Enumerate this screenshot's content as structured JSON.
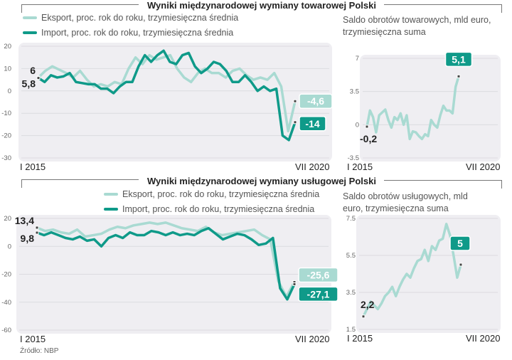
{
  "colors": {
    "export": "#a9dad2",
    "import": "#0f9a89",
    "balance": "#a9dad2",
    "plot_bg": "#efeef2"
  },
  "source": "Źródło: NBP",
  "chart_data": [
    {
      "type": "line",
      "title": "Wyniki międzynarodowej wymiany towarowej Polski",
      "x_labels": [
        "I 2015",
        "VII 2020"
      ],
      "ylim": [
        -30,
        20
      ],
      "yticks": [
        "20",
        "10",
        "0",
        "-10",
        "-20",
        "-30"
      ],
      "grid": true,
      "series": [
        {
          "name": "Eksport, proc. rok do roku, trzymiesięczna średnia",
          "color": "export",
          "start_label": "6",
          "end_label": "-4,6",
          "values": [
            6,
            9,
            11,
            9.5,
            8,
            6,
            9,
            5,
            2,
            3,
            2,
            4,
            3,
            10,
            15,
            12,
            16,
            14,
            15,
            16,
            10,
            6,
            4,
            8,
            10,
            8,
            8,
            6,
            9,
            10,
            7,
            5,
            6,
            5,
            8,
            2,
            -18,
            -4.6
          ]
        },
        {
          "name": "Import, proc. rok do roku, trzymiesięczna średnia",
          "color": "import",
          "start_label": "5,8",
          "end_label": "-14",
          "values": [
            5.8,
            4,
            7,
            6,
            6.5,
            8,
            4,
            3.5,
            3,
            3,
            1,
            1,
            -1,
            2,
            4,
            4,
            11,
            16,
            13,
            16,
            18,
            13,
            12,
            16,
            17,
            11,
            8,
            10,
            13,
            12,
            9,
            4,
            4,
            7,
            4,
            0,
            2,
            0,
            1,
            -20,
            -22,
            -14
          ]
        }
      ]
    },
    {
      "type": "line",
      "title": "Saldo obrotów towarowych, mld euro, trzymiesięczna suma",
      "x_labels": [
        "I 2015",
        "VII 2020"
      ],
      "ylim": [
        -3.5,
        7
      ],
      "yticks": [
        "7",
        "3.5",
        "0",
        "-3.5"
      ],
      "grid": true,
      "series": [
        {
          "color": "balance",
          "start_label": "-0,2",
          "end_label": "5,1",
          "values": [
            -0.2,
            1.5,
            0.8,
            -0.8,
            1,
            1.3,
            1.6,
            0.5,
            -0.3,
            0.8,
            0.5,
            1.2,
            0,
            1,
            -1.5,
            -0.7,
            -0.8,
            -1.2,
            -1.5,
            -1,
            -1.2,
            0.5,
            0,
            -0.3,
            1,
            2,
            1.5,
            1.5,
            1.2,
            4,
            5.1
          ]
        }
      ]
    },
    {
      "type": "line",
      "title": "Wyniki międzynarodowej wymiany usługowej Polski",
      "x_labels": [
        "I 2015",
        "VII 2020"
      ],
      "ylim": [
        -60,
        20
      ],
      "yticks": [
        "20",
        "0",
        "-20",
        "-40",
        "-60"
      ],
      "grid": true,
      "series": [
        {
          "name": "Eksport, proc. rok do roku, trzymiesięczna średnia",
          "color": "export",
          "start_label": "13,4",
          "end_label": "-25,6",
          "values": [
            13.4,
            11,
            12,
            10,
            9,
            12,
            7,
            8,
            9,
            12,
            14,
            13,
            15,
            16,
            17,
            16,
            17,
            15,
            13,
            12,
            11,
            14,
            10,
            8,
            9,
            10,
            11,
            12,
            8,
            5,
            -25,
            -36,
            -25.6
          ]
        },
        {
          "name": "Import, proc. rok do roku, trzymiesięczna średnia",
          "color": "import",
          "start_label": "9,8",
          "end_label": "-27,1",
          "values": [
            9.8,
            8,
            10,
            8,
            6,
            5,
            7,
            4,
            5,
            0,
            6,
            8,
            6,
            10,
            8,
            8,
            11,
            10,
            8,
            10,
            8,
            9,
            8,
            11,
            13,
            9,
            5,
            7,
            9,
            8,
            5,
            1,
            2,
            6,
            -30,
            -38,
            -27.1
          ]
        }
      ]
    },
    {
      "type": "line",
      "title": "Saldo obrotów usługowych, mld euro, trzymiesięczna suma",
      "x_labels": [
        "I 2015",
        "VII 2020"
      ],
      "ylim": [
        1.5,
        7.5
      ],
      "yticks": [
        "7.5",
        "5.5",
        "3.5",
        "1.5"
      ],
      "grid": true,
      "series": [
        {
          "color": "balance",
          "start_label": "2,2",
          "end_label": "5",
          "values": [
            2.2,
            2.6,
            3.0,
            2.8,
            2.6,
            2.9,
            3.3,
            3.5,
            3.8,
            3.3,
            3.8,
            4.2,
            4.5,
            4.3,
            4.8,
            5.2,
            5.3,
            5.8,
            5.2,
            6.0,
            5.8,
            6.3,
            6.4,
            7.2,
            6.6,
            5.5,
            4.3,
            5.0
          ]
        }
      ]
    }
  ]
}
